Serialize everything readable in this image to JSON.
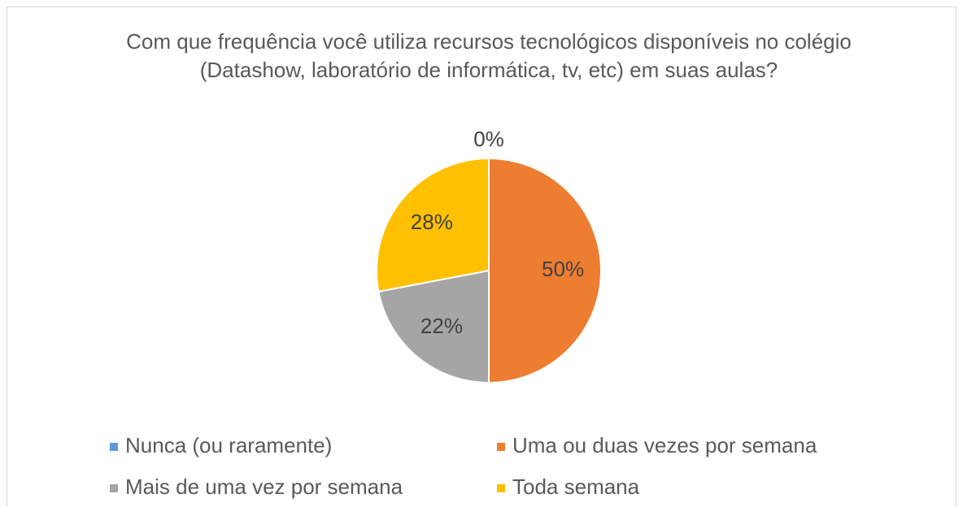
{
  "chart_data": {
    "type": "pie",
    "title": "Com que frequência você utiliza recursos tecnológicos disponíveis no colégio (Datashow, laboratório de informática, tv, etc) em suas aulas?",
    "categories": [
      "Nunca (ou raramente)",
      "Uma ou duas vezes por semana",
      "Mais de uma vez por semana",
      "Toda semana"
    ],
    "values": [
      0,
      50,
      22,
      28
    ],
    "value_labels": [
      "0%",
      "50%",
      "22%",
      "28%"
    ],
    "colors": [
      "#5b9bd5",
      "#ed7d31",
      "#a5a5a5",
      "#ffc000"
    ],
    "legend": "bottom"
  }
}
